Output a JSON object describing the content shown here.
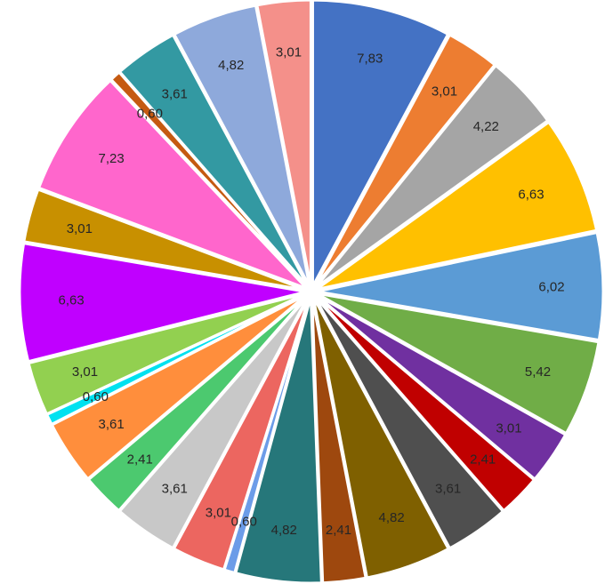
{
  "chart_data": {
    "type": "pie",
    "title": "",
    "legend": "none",
    "start_angle_deg": 0,
    "direction": "clockwise",
    "exploded": true,
    "slices": [
      {
        "value": 7.83,
        "label": "7,83",
        "color": "#4472C4"
      },
      {
        "value": 3.01,
        "label": "3,01",
        "color": "#ED7D31"
      },
      {
        "value": 4.22,
        "label": "4,22",
        "color": "#A5A5A5"
      },
      {
        "value": 6.63,
        "label": "6,63",
        "color": "#FFC000"
      },
      {
        "value": 6.02,
        "label": "6,02",
        "color": "#5B9BD5"
      },
      {
        "value": 5.42,
        "label": "5,42",
        "color": "#70AD47"
      },
      {
        "value": 3.01,
        "label": "3,01",
        "color": "#7030A0"
      },
      {
        "value": 2.41,
        "label": "2,41",
        "color": "#C00000"
      },
      {
        "value": 3.61,
        "label": "3,61",
        "color": "#4F4F4F"
      },
      {
        "value": 4.82,
        "label": "4,82",
        "color": "#7F6000"
      },
      {
        "value": 2.41,
        "label": "2,41",
        "color": "#9E480E"
      },
      {
        "value": 4.82,
        "label": "4,82",
        "color": "#26777A"
      },
      {
        "value": 0.6,
        "label": "0,60",
        "color": "#6C9CE8"
      },
      {
        "value": 3.01,
        "label": "3,01",
        "color": "#EC6660"
      },
      {
        "value": 3.61,
        "label": "3,61",
        "color": "#C8C8C8"
      },
      {
        "value": 2.41,
        "label": "2,41",
        "color": "#4CC96F"
      },
      {
        "value": 3.61,
        "label": "3,61",
        "color": "#FF8E3C"
      },
      {
        "value": 0.6,
        "label": "0,60",
        "color": "#00E1F0"
      },
      {
        "value": 3.01,
        "label": "3,01",
        "color": "#92D050"
      },
      {
        "value": 6.63,
        "label": "6,63",
        "color": "#C000FF"
      },
      {
        "value": 3.01,
        "label": "3,01",
        "color": "#C89000"
      },
      {
        "value": 7.23,
        "label": "7,23",
        "color": "#FF66CC"
      },
      {
        "value": 0.6,
        "label": "0,60",
        "color": "#C55A11"
      },
      {
        "value": 3.61,
        "label": "3,61",
        "color": "#3399A2"
      },
      {
        "value": 4.82,
        "label": "4,82",
        "color": "#8EA9DB"
      },
      {
        "value": 3.01,
        "label": "3,01",
        "color": "#F4908A"
      }
    ]
  }
}
